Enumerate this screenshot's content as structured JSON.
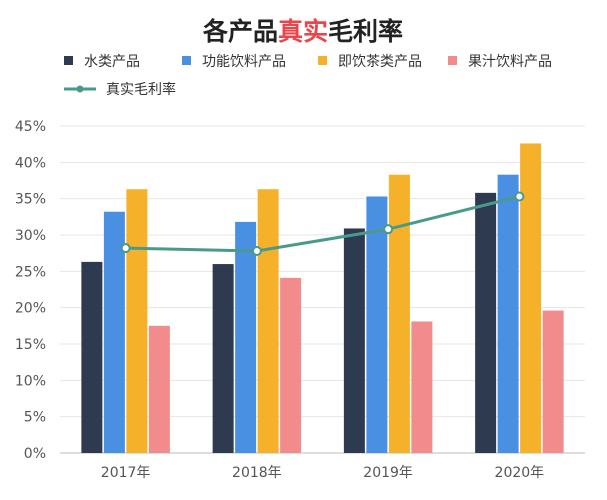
{
  "chart_data": {
    "type": "bar",
    "title_parts": [
      {
        "text": "各产品",
        "color": "#222222"
      },
      {
        "text": "真实",
        "color": "#e8464b"
      },
      {
        "text": "毛利率",
        "color": "#222222"
      }
    ],
    "categories": [
      "2017年",
      "2018年",
      "2019年",
      "2020年"
    ],
    "ylim": [
      0,
      45
    ],
    "yticks": [
      "0%",
      "5%",
      "10%",
      "15%",
      "20%",
      "25%",
      "30%",
      "35%",
      "40%",
      "45%"
    ],
    "grid": true,
    "legend_position": "top-left",
    "series": [
      {
        "name": "水类产品",
        "color": "#2e3a4f",
        "values": [
          26.3,
          26.0,
          30.9,
          35.8
        ]
      },
      {
        "name": "功能饮料产品",
        "color": "#4a90e2",
        "values": [
          33.2,
          31.8,
          35.3,
          38.3
        ]
      },
      {
        "name": "即饮茶类产品",
        "color": "#f5b12a",
        "values": [
          36.3,
          36.3,
          38.3,
          42.6
        ]
      },
      {
        "name": "果汁饮料产品",
        "color": "#f28b8b",
        "values": [
          17.5,
          24.1,
          18.1,
          19.6
        ]
      }
    ],
    "line": {
      "name": "真实毛利率",
      "color": "#4a9a8c",
      "values": [
        28.2,
        27.8,
        30.8,
        35.3
      ]
    }
  }
}
